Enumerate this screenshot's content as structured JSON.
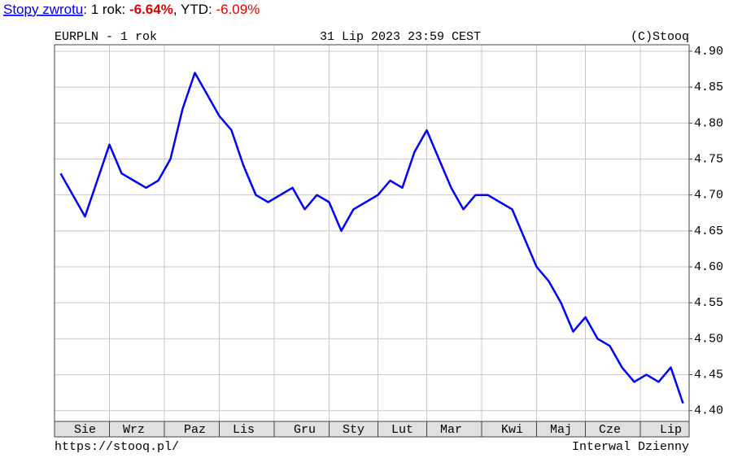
{
  "header": {
    "link": "Stopy zwrotu",
    "period_label": ": 1 rok:",
    "period_return": "-6.64%",
    "ytd_label": ", YTD:",
    "ytd_return": "-6.09%"
  },
  "chart_data": {
    "type": "line",
    "title": "EURPLN - 1 rok",
    "date": "31 Lip 2023 23:59 CEST",
    "copyright": "(C)Stooq",
    "source": "https://stooq.pl/",
    "interval": "Interwal Dzienny",
    "categories": [
      null,
      null,
      "Sie",
      null,
      null,
      null,
      "Wrz",
      null,
      null,
      null,
      null,
      "Paz",
      null,
      null,
      null,
      "Lis",
      null,
      null,
      null,
      null,
      "Gru",
      null,
      null,
      null,
      "Sty",
      null,
      null,
      null,
      "Lut",
      null,
      null,
      null,
      "Mar",
      null,
      null,
      null,
      null,
      "Kwi",
      null,
      null,
      null,
      "Maj",
      null,
      null,
      null,
      "Cze",
      null,
      null,
      null,
      null,
      "Lip",
      null
    ],
    "values": [
      4.73,
      4.7,
      4.67,
      4.72,
      4.77,
      4.73,
      4.72,
      4.71,
      4.72,
      4.75,
      4.82,
      4.87,
      4.84,
      4.81,
      4.79,
      4.74,
      4.7,
      4.69,
      4.7,
      4.71,
      4.68,
      4.7,
      4.69,
      4.65,
      4.68,
      4.69,
      4.7,
      4.72,
      4.71,
      4.76,
      4.79,
      4.75,
      4.71,
      4.68,
      4.7,
      4.7,
      4.69,
      4.68,
      4.64,
      4.6,
      4.58,
      4.55,
      4.51,
      4.53,
      4.5,
      4.49,
      4.46,
      4.44,
      4.45,
      4.44,
      4.46,
      4.41
    ],
    "color": "#0000ff",
    "ylim": [
      4.385,
      4.909
    ],
    "yticks": [
      {
        "value": 4.4,
        "label": "4.40"
      },
      4.45,
      {
        "value": 4.5,
        "label": "4.50"
      },
      4.55,
      {
        "value": 4.6,
        "label": "4.60"
      },
      4.65,
      {
        "value": 4.7,
        "label": "4.70"
      },
      4.75,
      {
        "value": 4.8,
        "label": "4.80"
      },
      4.85,
      {
        "value": 4.9,
        "label": "4.90"
      }
    ],
    "grid": true
  }
}
